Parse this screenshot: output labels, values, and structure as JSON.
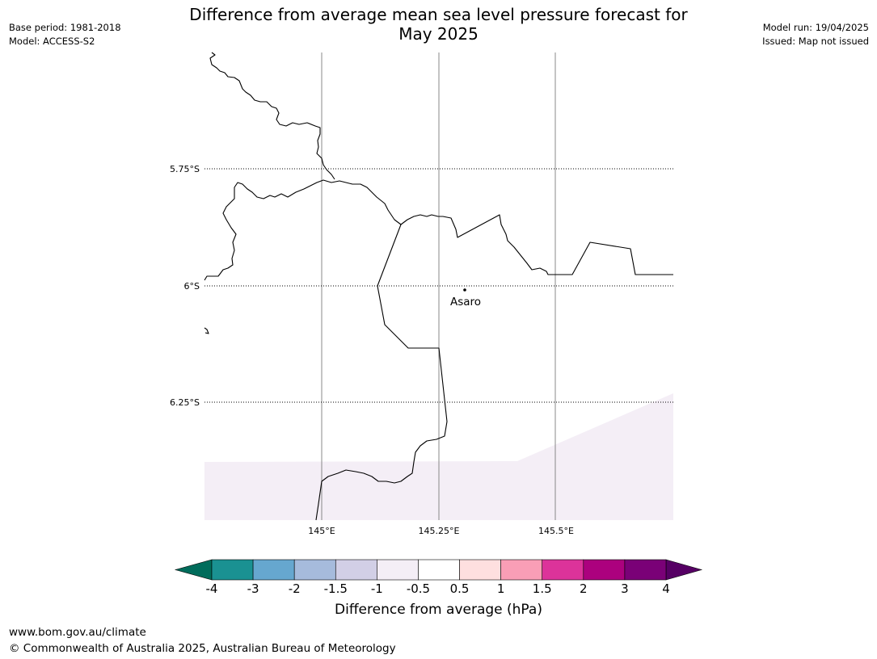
{
  "title_line1": "Difference from average mean sea level pressure forecast for",
  "title_line2": "May 2025",
  "meta_left": {
    "base_period": "Base period: 1981-2018",
    "model": "Model: ACCESS-S2"
  },
  "meta_right": {
    "model_run": "Model run: 19/04/2025",
    "issued": "Issued: Map not issued"
  },
  "map": {
    "lat_labels": [
      "5.75°S",
      "6°S",
      "6.25°S"
    ],
    "lon_labels": [
      "145°E",
      "145.25°E",
      "145.5°E"
    ],
    "place": {
      "name": "Asaro"
    },
    "shading_color": "#f4eef6",
    "border_color": "#000000"
  },
  "colorbar": {
    "ticks": [
      "-4",
      "-3",
      "-2",
      "-1.5",
      "-1",
      "-0.5",
      "0.5",
      "1",
      "1.5",
      "2",
      "3",
      "4"
    ],
    "low_extend_color": "#006c5b",
    "high_extend_color": "#560064",
    "colors": [
      "#1a9192",
      "#66a7cf",
      "#a6bbdc",
      "#d2cfe6",
      "#f4eef6",
      "#ffffff",
      "#fedfdf",
      "#f99eb6",
      "#dc339a",
      "#ac017e",
      "#7a0177"
    ],
    "title": "Difference from average (hPa)"
  },
  "footer": {
    "url": "www.bom.gov.au/climate",
    "copyright": "© Commonwealth of Australia 2025, Australian Bureau of Meteorology"
  }
}
